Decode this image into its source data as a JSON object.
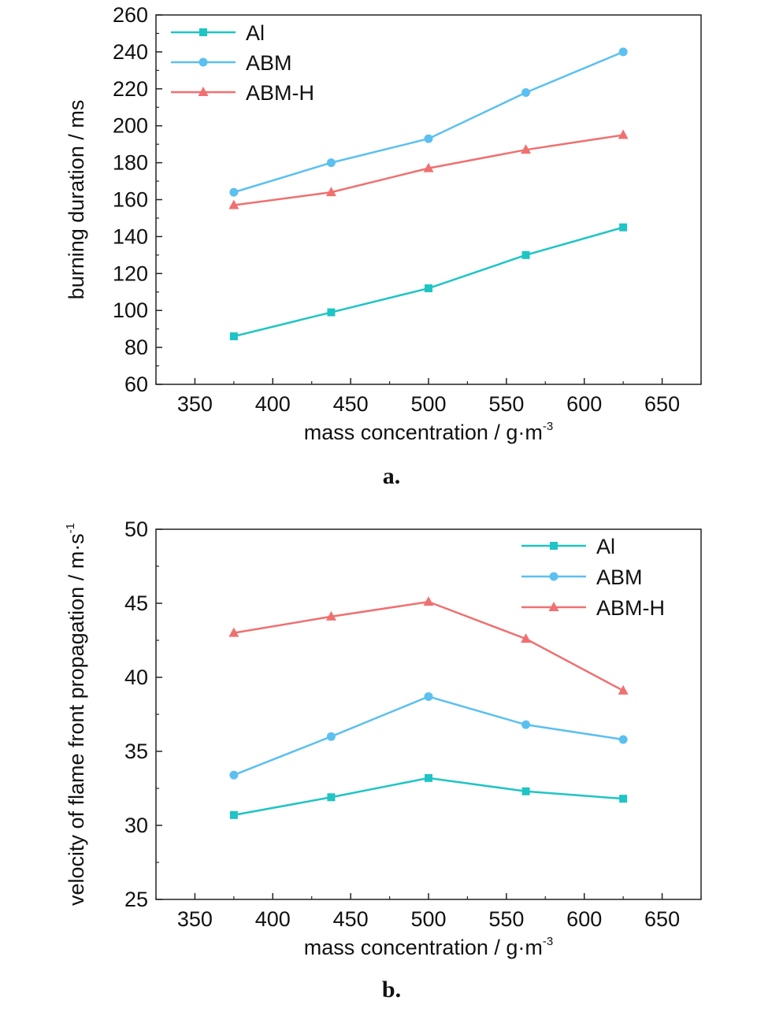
{
  "chart_data": [
    {
      "type": "line",
      "caption": "a.",
      "xlabel": "mass concentration / g·m",
      "xlabel_sup": "-3",
      "ylabel": "burning duration / ms",
      "xlim": [
        325,
        675
      ],
      "ylim": [
        60,
        260
      ],
      "xticks": [
        350,
        400,
        450,
        500,
        550,
        600,
        650
      ],
      "yticks": [
        60,
        80,
        100,
        120,
        140,
        160,
        180,
        200,
        220,
        240,
        260
      ],
      "legend_position": "top-left",
      "x": [
        375,
        437.5,
        500,
        562.5,
        625
      ],
      "series": [
        {
          "name": "Al",
          "color": "#1fc4c4",
          "marker": "square",
          "values": [
            86,
            99,
            112,
            130,
            145
          ]
        },
        {
          "name": "ABM",
          "color": "#5bc0f0",
          "marker": "circle",
          "values": [
            164,
            180,
            193,
            218,
            240
          ]
        },
        {
          "name": "ABM-H",
          "color": "#f07070",
          "marker": "triangle",
          "values": [
            157,
            164,
            177,
            187,
            195
          ]
        }
      ]
    },
    {
      "type": "line",
      "caption": "b.",
      "xlabel": "mass concentration / g·m",
      "xlabel_sup": "-3",
      "ylabel": "velocity of flame front propagation / m·s",
      "ylabel_sup": "-1",
      "xlim": [
        325,
        675
      ],
      "ylim": [
        25,
        50
      ],
      "xticks": [
        350,
        400,
        450,
        500,
        550,
        600,
        650
      ],
      "yticks": [
        25,
        30,
        35,
        40,
        45,
        50
      ],
      "legend_position": "top-right",
      "x": [
        375,
        437.5,
        500,
        562.5,
        625
      ],
      "series": [
        {
          "name": "Al",
          "color": "#1fc4c4",
          "marker": "square",
          "values": [
            30.7,
            31.9,
            33.2,
            32.3,
            31.8
          ]
        },
        {
          "name": "ABM",
          "color": "#5bc0f0",
          "marker": "circle",
          "values": [
            33.4,
            36.0,
            38.7,
            36.8,
            35.8
          ]
        },
        {
          "name": "ABM-H",
          "color": "#f07070",
          "marker": "triangle",
          "values": [
            43.0,
            44.1,
            45.1,
            42.6,
            39.1
          ]
        }
      ]
    }
  ]
}
